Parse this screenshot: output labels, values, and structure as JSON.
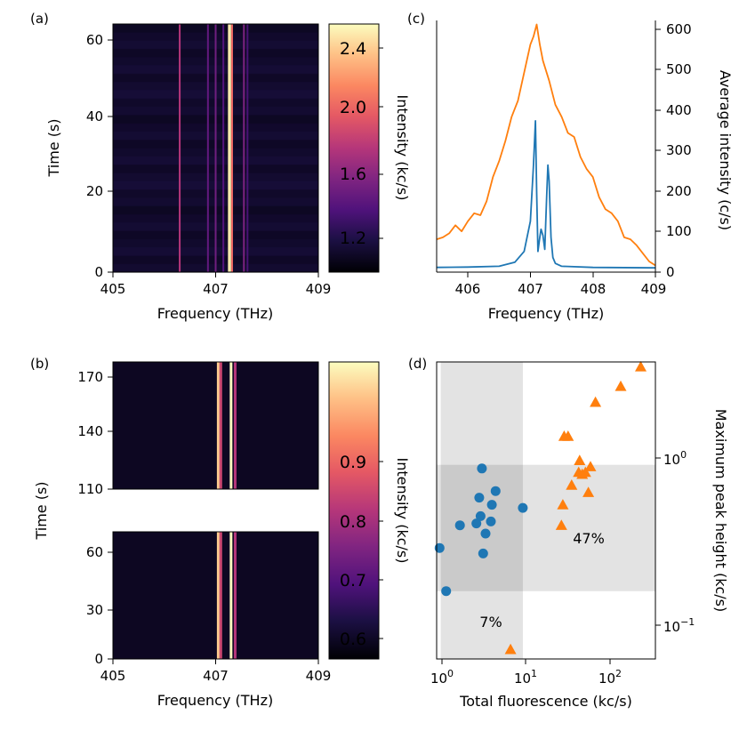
{
  "panels": {
    "a": {
      "label": "(a)",
      "xlabel": "Frequency (THz)",
      "ylabel": "Time (s)",
      "xticks": [
        "405",
        "407",
        "409"
      ],
      "yticks": [
        "0",
        "20",
        "40",
        "60"
      ],
      "colorbar_ticks": [
        "1.2",
        "1.6",
        "2.0",
        "2.4"
      ],
      "colorbar_label": "Intensity (kc/s)"
    },
    "b": {
      "label": "(b)",
      "xlabel": "Frequency (THz)",
      "ylabel": "Time (s)",
      "xticks": [
        "405",
        "407",
        "409"
      ],
      "yticks_top": [
        "110",
        "140",
        "170"
      ],
      "yticks_bottom": [
        "0",
        "30",
        "60"
      ],
      "colorbar_ticks": [
        "0.6",
        "0.7",
        "0.8",
        "0.9"
      ],
      "colorbar_label": "Intensity (kc/s)"
    },
    "c": {
      "label": "(c)",
      "xlabel": "Frequency (THz)",
      "ylabel": "Average intensity (c/s)",
      "xticks": [
        "406",
        "407",
        "408",
        "409"
      ],
      "yticks": [
        "0",
        "100",
        "200",
        "300",
        "400",
        "500",
        "600"
      ]
    },
    "d": {
      "label": "(d)",
      "xlabel": "Total fluorescence (kc/s)",
      "ylabel": "Maximum peak height (kc/s)",
      "xtick_bases": [
        "10",
        "10",
        "10"
      ],
      "xtick_exps": [
        "0",
        "1",
        "2"
      ],
      "ytick_bases": [
        "10",
        "10"
      ],
      "ytick_exps": [
        "−1",
        "0"
      ],
      "annotation_orange": "47%",
      "annotation_blue": "7%"
    }
  },
  "colors": {
    "blue": "#1f77b4",
    "orange": "#ff7f0e"
  },
  "chart_data": [
    {
      "type": "heatmap",
      "id": "a",
      "x_range": [
        405,
        409
      ],
      "y_range": [
        0,
        65
      ],
      "color_range": [
        1.0,
        2.5
      ],
      "colormap": "magma",
      "line_features": [
        {
          "freq": 406.3,
          "intensity": 1.75
        },
        {
          "freq": 406.85,
          "intensity": 1.45
        },
        {
          "freq": 407.0,
          "intensity": 1.5
        },
        {
          "freq": 407.15,
          "intensity": 1.4
        },
        {
          "freq": 407.27,
          "intensity": 2.45
        },
        {
          "freq": 407.32,
          "intensity": 2.0
        },
        {
          "freq": 407.55,
          "intensity": 1.55
        },
        {
          "freq": 407.62,
          "intensity": 1.35
        }
      ]
    },
    {
      "type": "heatmap",
      "id": "b",
      "x_range": [
        405,
        409
      ],
      "y_ranges": [
        [
          0,
          72
        ],
        [
          110,
          175
        ]
      ],
      "color_range": [
        0.5,
        1.0
      ],
      "colormap": "magma",
      "line_features": [
        {
          "freq": 407.05,
          "intensity": 0.95
        },
        {
          "freq": 407.1,
          "intensity": 0.78
        },
        {
          "freq": 407.3,
          "intensity": 1.0
        },
        {
          "freq": 407.38,
          "intensity": 0.75
        }
      ]
    },
    {
      "type": "line",
      "id": "c",
      "x_range": [
        405.5,
        409
      ],
      "ylim": [
        0,
        620
      ],
      "series": [
        {
          "name": "orange",
          "x": [
            405.5,
            405.6,
            405.7,
            405.8,
            405.9,
            406.0,
            406.1,
            406.2,
            406.3,
            406.4,
            406.5,
            406.6,
            406.7,
            406.8,
            406.9,
            407.0,
            407.05,
            407.1,
            407.15,
            407.2,
            407.3,
            407.4,
            407.5,
            407.6,
            407.7,
            407.8,
            407.9,
            408.0,
            408.1,
            408.2,
            408.3,
            408.4,
            408.5,
            408.6,
            408.7,
            408.8,
            408.9,
            409.0
          ],
          "values": [
            75,
            80,
            90,
            110,
            95,
            120,
            140,
            135,
            170,
            230,
            270,
            320,
            380,
            420,
            490,
            560,
            580,
            610,
            560,
            520,
            470,
            410,
            380,
            340,
            330,
            280,
            250,
            230,
            180,
            150,
            140,
            120,
            80,
            75,
            60,
            40,
            20,
            10
          ]
        },
        {
          "name": "blue",
          "x": [
            405.5,
            406.0,
            406.5,
            406.75,
            406.9,
            407.0,
            407.05,
            407.08,
            407.1,
            407.12,
            407.15,
            407.17,
            407.2,
            407.23,
            407.26,
            407.28,
            407.3,
            407.33,
            407.36,
            407.4,
            407.5,
            408.0,
            409.0
          ],
          "values": [
            5,
            6,
            8,
            18,
            45,
            120,
            260,
            370,
            190,
            45,
            80,
            100,
            85,
            50,
            180,
            260,
            220,
            80,
            30,
            15,
            8,
            5,
            4
          ]
        }
      ]
    },
    {
      "type": "scatter",
      "id": "d",
      "x_scale": "log",
      "y_scale": "log",
      "xlim": [
        0.85,
        320
      ],
      "ylim": [
        0.068,
        3.3
      ],
      "shaded_x_range": [
        0.95,
        8.8
      ],
      "shaded_y_range": [
        0.165,
        0.86
      ],
      "series": [
        {
          "name": "blue",
          "marker": "circle",
          "points": [
            [
              0.92,
              0.29
            ],
            [
              1.1,
              0.165
            ],
            [
              1.6,
              0.39
            ],
            [
              2.5,
              0.4
            ],
            [
              2.7,
              0.56
            ],
            [
              2.8,
              0.44
            ],
            [
              2.9,
              0.82
            ],
            [
              3.0,
              0.27
            ],
            [
              3.2,
              0.35
            ],
            [
              3.7,
              0.41
            ],
            [
              3.8,
              0.51
            ],
            [
              4.2,
              0.61
            ],
            [
              8.8,
              0.49
            ]
          ]
        },
        {
          "name": "orange",
          "marker": "triangle",
          "points": [
            [
              6.3,
              0.077
            ],
            [
              25,
              0.39
            ],
            [
              26,
              0.51
            ],
            [
              27,
              1.25
            ],
            [
              30,
              1.25
            ],
            [
              33,
              0.66
            ],
            [
              40,
              0.78
            ],
            [
              41,
              0.91
            ],
            [
              44,
              0.76
            ],
            [
              48,
              0.78
            ],
            [
              52,
              0.6
            ],
            [
              55,
              0.84
            ],
            [
              63,
              1.95
            ],
            [
              125,
              2.4
            ],
            [
              215,
              3.1
            ]
          ]
        }
      ]
    }
  ]
}
